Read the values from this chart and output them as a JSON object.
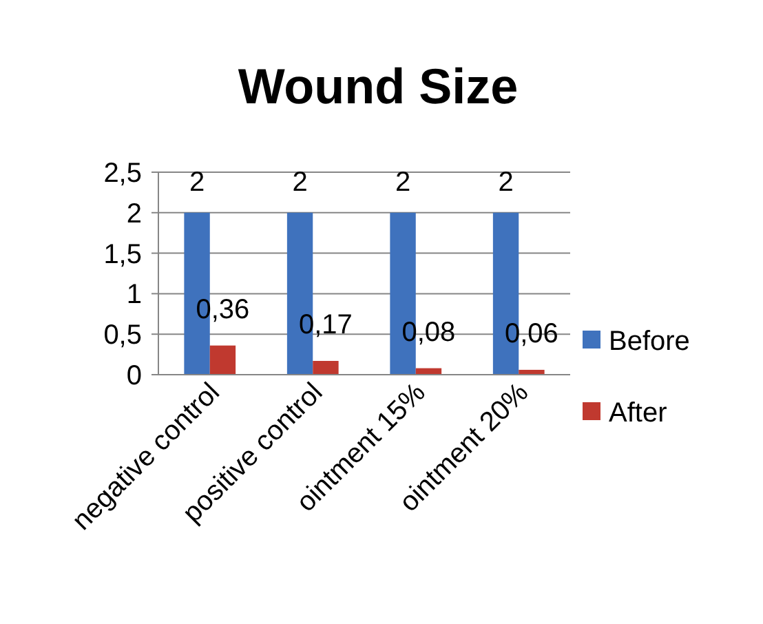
{
  "chart_data": {
    "type": "bar",
    "title": "Wound Size",
    "categories": [
      "negative control",
      "positive control",
      "ointment 15%",
      "ointment 20%"
    ],
    "series": [
      {
        "name": "Before",
        "color": "#3f72bd",
        "values": [
          2,
          2,
          2,
          2
        ],
        "value_labels": [
          "2",
          "2",
          "2",
          "2"
        ]
      },
      {
        "name": "After",
        "color": "#c0392f",
        "values": [
          0.36,
          0.17,
          0.08,
          0.06
        ],
        "value_labels": [
          "0,36",
          "0,17",
          "0,08",
          "0,06"
        ]
      }
    ],
    "ylim": [
      0,
      2.5
    ],
    "yticks": [
      0,
      {
        "value": 0.5,
        "label": "0,5"
      },
      1,
      {
        "value": 1.5,
        "label": "1,5"
      },
      2,
      {
        "value": 2.5,
        "label": "2,5"
      }
    ],
    "grid": "y",
    "legend": "right"
  }
}
